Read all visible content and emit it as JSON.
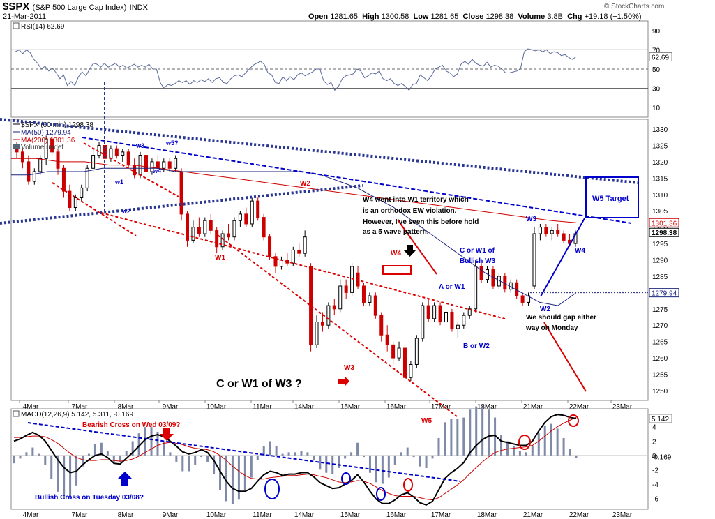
{
  "header": {
    "symbol": "$SPX",
    "name": "(S&P 500 Large Cap Index)",
    "exchange": "INDX",
    "date": "21-Mar-2011",
    "open_label": "Open",
    "open": "1281.65",
    "high_label": "High",
    "high": "1300.58",
    "low_label": "Low",
    "low": "1281.65",
    "close_label": "Close",
    "close": "1298.38",
    "volume_label": "Volume",
    "volume": "3.8B",
    "chg_label": "Chg",
    "chg": "+19.18 (+1.50%)",
    "watermark": "© StockCharts.com"
  },
  "colors": {
    "candle_up": "#000000",
    "candle_down": "#cc0000",
    "ma50": "#1a237e",
    "ma200": "#cc0000",
    "annotation_blue": "#0000cc",
    "annotation_red": "#dd0000",
    "rsi": "#5a6a9a",
    "macd": "#000000",
    "signal": "#cc0000",
    "histogram": "#7f8aa8"
  },
  "chart_data": [
    {
      "type": "line",
      "title": "RSI(14) 62.69",
      "y_ticks": [
        90,
        70,
        50,
        30,
        10
      ],
      "ylim": [
        0,
        100
      ],
      "last_value_label": "62.69",
      "values": [
        68,
        70,
        66,
        70,
        67,
        60,
        56,
        50,
        53,
        48,
        51,
        46,
        40,
        44,
        33,
        37,
        33,
        42,
        47,
        43,
        50,
        56,
        55,
        52,
        56,
        52,
        54,
        56,
        52,
        54,
        51,
        53,
        55,
        52,
        54,
        52,
        55,
        50,
        50,
        36,
        30,
        34,
        33,
        35,
        38,
        36,
        38,
        34,
        38,
        36,
        39,
        37,
        40,
        36,
        40,
        41,
        36,
        35,
        40,
        43,
        44,
        42,
        46,
        50,
        54,
        56,
        58,
        55,
        46,
        44,
        36,
        35,
        42,
        38,
        42,
        39,
        44,
        46,
        43,
        45,
        47,
        50,
        50,
        38,
        34,
        36,
        28,
        32,
        40,
        43,
        44,
        45,
        50,
        48,
        41,
        43,
        46,
        45,
        48,
        40,
        38,
        40,
        35,
        33,
        35,
        32,
        28,
        34,
        35,
        44,
        41,
        38,
        43,
        50,
        52,
        54,
        48,
        46,
        42,
        45,
        55,
        58,
        55,
        60,
        56,
        54,
        53,
        57,
        52,
        54,
        53,
        50,
        46,
        46,
        47,
        48,
        50,
        68,
        71,
        70,
        69,
        70,
        68,
        70,
        66,
        68,
        67,
        64,
        65,
        62,
        60,
        63
      ]
    },
    {
      "type": "candlestick",
      "title": "$SPX (60 min) 1298.38",
      "legend": [
        "$SPX (60 min) 1298.38",
        "MA(50) 1279.94",
        "MA(200) 1301.36",
        "Volume undef"
      ],
      "y_ticks": [
        1330,
        1325,
        1320,
        1315,
        1310,
        1305,
        1300,
        1295,
        1290,
        1285,
        1280,
        1275,
        1270,
        1265,
        1260,
        1255,
        1250
      ],
      "ylim": [
        1247,
        1333
      ],
      "x_labels": [
        "4Mar",
        "7Mar",
        "8Mar",
        "9Mar",
        "10Mar",
        "11Mar",
        "14Mar",
        "15Mar",
        "16Mar",
        "17Mar",
        "18Mar",
        "21Mar",
        "22Mar",
        "23Mar"
      ],
      "price_labels": {
        "ma200": "1301.36",
        "close": "1298.38",
        "ma50": "1279.94"
      },
      "candles": [
        {
          "o": 1324,
          "h": 1326,
          "l": 1321,
          "c": 1323
        },
        {
          "o": 1323,
          "h": 1324,
          "l": 1318,
          "c": 1320
        },
        {
          "o": 1320,
          "h": 1322,
          "l": 1313,
          "c": 1314
        },
        {
          "o": 1314,
          "h": 1318,
          "l": 1313,
          "c": 1317
        },
        {
          "o": 1317,
          "h": 1322,
          "l": 1316,
          "c": 1321
        },
        {
          "o": 1321,
          "h": 1328,
          "l": 1319,
          "c": 1327
        },
        {
          "o": 1327,
          "h": 1329,
          "l": 1322,
          "c": 1323
        },
        {
          "o": 1323,
          "h": 1324,
          "l": 1316,
          "c": 1318
        },
        {
          "o": 1318,
          "h": 1319,
          "l": 1309,
          "c": 1311
        },
        {
          "o": 1311,
          "h": 1313,
          "l": 1305,
          "c": 1306
        },
        {
          "o": 1306,
          "h": 1310,
          "l": 1305,
          "c": 1309
        },
        {
          "o": 1309,
          "h": 1313,
          "l": 1308,
          "c": 1312
        },
        {
          "o": 1312,
          "h": 1319,
          "l": 1311,
          "c": 1318
        },
        {
          "o": 1318,
          "h": 1324,
          "l": 1317,
          "c": 1322
        },
        {
          "o": 1322,
          "h": 1326,
          "l": 1321,
          "c": 1325
        },
        {
          "o": 1325,
          "h": 1326,
          "l": 1320,
          "c": 1321
        },
        {
          "o": 1321,
          "h": 1325,
          "l": 1320,
          "c": 1324
        },
        {
          "o": 1324,
          "h": 1325,
          "l": 1321,
          "c": 1322
        },
        {
          "o": 1322,
          "h": 1324,
          "l": 1320,
          "c": 1323
        },
        {
          "o": 1323,
          "h": 1324,
          "l": 1318,
          "c": 1319
        },
        {
          "o": 1319,
          "h": 1321,
          "l": 1315,
          "c": 1316
        },
        {
          "o": 1316,
          "h": 1323,
          "l": 1315,
          "c": 1322
        },
        {
          "o": 1322,
          "h": 1323,
          "l": 1316,
          "c": 1317
        },
        {
          "o": 1317,
          "h": 1321,
          "l": 1316,
          "c": 1320
        },
        {
          "o": 1320,
          "h": 1322,
          "l": 1317,
          "c": 1318
        },
        {
          "o": 1318,
          "h": 1321,
          "l": 1317,
          "c": 1320
        },
        {
          "o": 1320,
          "h": 1321,
          "l": 1317,
          "c": 1318
        },
        {
          "o": 1318,
          "h": 1322,
          "l": 1317,
          "c": 1321
        },
        {
          "o": 1317,
          "h": 1318,
          "l": 1302,
          "c": 1304
        },
        {
          "o": 1304,
          "h": 1305,
          "l": 1294,
          "c": 1296
        },
        {
          "o": 1296,
          "h": 1302,
          "l": 1295,
          "c": 1300
        },
        {
          "o": 1300,
          "h": 1303,
          "l": 1297,
          "c": 1298
        },
        {
          "o": 1298,
          "h": 1303,
          "l": 1297,
          "c": 1302
        },
        {
          "o": 1302,
          "h": 1304,
          "l": 1298,
          "c": 1299
        },
        {
          "o": 1299,
          "h": 1300,
          "l": 1292,
          "c": 1294
        },
        {
          "o": 1294,
          "h": 1299,
          "l": 1293,
          "c": 1298
        },
        {
          "o": 1298,
          "h": 1301,
          "l": 1296,
          "c": 1297
        },
        {
          "o": 1297,
          "h": 1303,
          "l": 1296,
          "c": 1302
        },
        {
          "o": 1302,
          "h": 1305,
          "l": 1300,
          "c": 1304
        },
        {
          "o": 1304,
          "h": 1306,
          "l": 1300,
          "c": 1301
        },
        {
          "o": 1301,
          "h": 1309,
          "l": 1300,
          "c": 1308
        },
        {
          "o": 1308,
          "h": 1309,
          "l": 1302,
          "c": 1303
        },
        {
          "o": 1303,
          "h": 1304,
          "l": 1296,
          "c": 1297
        },
        {
          "o": 1297,
          "h": 1298,
          "l": 1290,
          "c": 1291
        },
        {
          "o": 1291,
          "h": 1292,
          "l": 1286,
          "c": 1288
        },
        {
          "o": 1288,
          "h": 1291,
          "l": 1287,
          "c": 1290
        },
        {
          "o": 1290,
          "h": 1292,
          "l": 1288,
          "c": 1289
        },
        {
          "o": 1289,
          "h": 1294,
          "l": 1288,
          "c": 1293
        },
        {
          "o": 1293,
          "h": 1295,
          "l": 1291,
          "c": 1292
        },
        {
          "o": 1292,
          "h": 1299,
          "l": 1291,
          "c": 1297
        },
        {
          "o": 1288,
          "h": 1289,
          "l": 1262,
          "c": 1264
        },
        {
          "o": 1264,
          "h": 1273,
          "l": 1263,
          "c": 1271
        },
        {
          "o": 1271,
          "h": 1274,
          "l": 1268,
          "c": 1270
        },
        {
          "o": 1270,
          "h": 1277,
          "l": 1269,
          "c": 1276
        },
        {
          "o": 1276,
          "h": 1278,
          "l": 1273,
          "c": 1275
        },
        {
          "o": 1275,
          "h": 1284,
          "l": 1274,
          "c": 1282
        },
        {
          "o": 1282,
          "h": 1284,
          "l": 1278,
          "c": 1280
        },
        {
          "o": 1280,
          "h": 1289,
          "l": 1279,
          "c": 1288
        },
        {
          "o": 1286,
          "h": 1288,
          "l": 1281,
          "c": 1282
        },
        {
          "o": 1282,
          "h": 1283,
          "l": 1276,
          "c": 1277
        },
        {
          "o": 1277,
          "h": 1280,
          "l": 1276,
          "c": 1279
        },
        {
          "o": 1279,
          "h": 1280,
          "l": 1272,
          "c": 1273
        },
        {
          "o": 1273,
          "h": 1274,
          "l": 1265,
          "c": 1267
        },
        {
          "o": 1267,
          "h": 1270,
          "l": 1262,
          "c": 1264
        },
        {
          "o": 1264,
          "h": 1265,
          "l": 1258,
          "c": 1260
        },
        {
          "o": 1260,
          "h": 1265,
          "l": 1259,
          "c": 1263
        },
        {
          "o": 1263,
          "h": 1264,
          "l": 1252,
          "c": 1254
        },
        {
          "o": 1254,
          "h": 1259,
          "l": 1253,
          "c": 1258
        },
        {
          "o": 1258,
          "h": 1267,
          "l": 1257,
          "c": 1266
        },
        {
          "o": 1266,
          "h": 1277,
          "l": 1265,
          "c": 1276
        },
        {
          "o": 1276,
          "h": 1278,
          "l": 1271,
          "c": 1272
        },
        {
          "o": 1272,
          "h": 1277,
          "l": 1271,
          "c": 1276
        },
        {
          "o": 1276,
          "h": 1277,
          "l": 1270,
          "c": 1271
        },
        {
          "o": 1271,
          "h": 1275,
          "l": 1270,
          "c": 1274
        },
        {
          "o": 1274,
          "h": 1275,
          "l": 1268,
          "c": 1269
        },
        {
          "o": 1269,
          "h": 1271,
          "l": 1266,
          "c": 1270
        },
        {
          "o": 1270,
          "h": 1274,
          "l": 1269,
          "c": 1273
        },
        {
          "o": 1273,
          "h": 1276,
          "l": 1272,
          "c": 1275
        },
        {
          "o": 1275,
          "h": 1290,
          "l": 1274,
          "c": 1288
        },
        {
          "o": 1288,
          "h": 1289,
          "l": 1283,
          "c": 1284
        },
        {
          "o": 1284,
          "h": 1288,
          "l": 1283,
          "c": 1287
        },
        {
          "o": 1287,
          "h": 1288,
          "l": 1281,
          "c": 1282
        },
        {
          "o": 1282,
          "h": 1286,
          "l": 1281,
          "c": 1285
        },
        {
          "o": 1285,
          "h": 1286,
          "l": 1280,
          "c": 1281
        },
        {
          "o": 1281,
          "h": 1284,
          "l": 1280,
          "c": 1283
        },
        {
          "o": 1283,
          "h": 1284,
          "l": 1278,
          "c": 1279
        },
        {
          "o": 1279,
          "h": 1280,
          "l": 1276,
          "c": 1277
        },
        {
          "o": 1277,
          "h": 1280,
          "l": 1276,
          "c": 1279
        },
        {
          "o": 1282,
          "h": 1300,
          "l": 1281,
          "c": 1298
        },
        {
          "o": 1298,
          "h": 1301,
          "l": 1296,
          "c": 1300
        },
        {
          "o": 1300,
          "h": 1301,
          "l": 1297,
          "c": 1298
        },
        {
          "o": 1298,
          "h": 1300,
          "l": 1296,
          "c": 1299
        },
        {
          "o": 1299,
          "h": 1301,
          "l": 1297,
          "c": 1298
        },
        {
          "o": 1298,
          "h": 1299,
          "l": 1295,
          "c": 1296
        },
        {
          "o": 1296,
          "h": 1298,
          "l": 1294,
          "c": 1295
        },
        {
          "o": 1295,
          "h": 1299,
          "l": 1294,
          "c": 1298
        }
      ],
      "ma50": [
        1316,
        1316,
        1317,
        1317,
        1317,
        1318,
        1318,
        1318,
        1318,
        1317,
        1317,
        1317,
        1317,
        1317,
        1317,
        1317,
        1317,
        1316,
        1314,
        1312,
        1309,
        1306,
        1302,
        1298,
        1294,
        1290,
        1286,
        1283,
        1280,
        1277,
        1276,
        1279.94
      ],
      "ma200": [
        1321,
        1321,
        1320,
        1320,
        1319,
        1319,
        1318,
        1317,
        1316,
        1315,
        1314,
        1313,
        1312,
        1311,
        1310,
        1309,
        1308,
        1307,
        1306,
        1305,
        1304,
        1303,
        1302,
        1301.36
      ],
      "annotations": [
        {
          "text": "w1",
          "color": "blue"
        },
        {
          "text": "w2",
          "color": "blue"
        },
        {
          "text": "w3",
          "color": "blue"
        },
        {
          "text": "w4",
          "color": "blue"
        },
        {
          "text": "w5?",
          "color": "blue"
        },
        {
          "text": "W1",
          "color": "red"
        },
        {
          "text": "W2",
          "color": "red"
        },
        {
          "text": "W3",
          "color": "red"
        },
        {
          "text": "W4",
          "color": "red"
        },
        {
          "text": "W5",
          "color": "red"
        },
        {
          "text": "W4 went into W1 territory which",
          "color": "black"
        },
        {
          "text": "is an orthodox EW violation.",
          "color": "black"
        },
        {
          "text": "However, I've seen this before hold",
          "color": "black"
        },
        {
          "text": "as a 5 wave pattern.",
          "color": "black"
        },
        {
          "text": "C or W1 of",
          "color": "blue"
        },
        {
          "text": "Bullish W3",
          "color": "blue"
        },
        {
          "text": "A or W1",
          "color": "blue"
        },
        {
          "text": "B or W2",
          "color": "blue"
        },
        {
          "text": "W3",
          "color": "blue"
        },
        {
          "text": "W4",
          "color": "blue"
        },
        {
          "text": "W2",
          "color": "blue"
        },
        {
          "text": "W5 Target",
          "color": "blue"
        },
        {
          "text": "We should gap either",
          "color": "black"
        },
        {
          "text": "way on Monday",
          "color": "black"
        },
        {
          "text": "C or W1 of W3 ?",
          "color": "black"
        }
      ]
    },
    {
      "type": "line",
      "title": "MACD(12,26,9) 5.142, 5.311, -0.169",
      "y_ticks": [
        4,
        2,
        0,
        -2,
        -4,
        -6
      ],
      "ylim": [
        -7.5,
        6.5
      ],
      "last_value_labels": [
        "5.142",
        "-0.169"
      ],
      "macd": [
        2,
        2.3,
        2.8,
        3.2,
        2.8,
        2.0,
        0.7,
        -0.6,
        -1.7,
        -2.4,
        -2.2,
        -1.3,
        -0.6,
        0.0,
        0.2,
        -0.3,
        -1.1,
        -1.2,
        -0.4,
        0.4,
        1.3,
        2.2,
        2.7,
        2.9,
        2.6,
        2.0,
        1.3,
        0.5,
        0.2,
        0.4,
        0.8,
        0.4,
        -0.7,
        -2.2,
        -3.6,
        -4.6,
        -5.0,
        -5.0,
        -4.6,
        -3.6,
        -2.7,
        -2.2,
        -2.4,
        -2.8,
        -2.6,
        -2.6,
        -2.4,
        -2.4,
        -3.0,
        -3.8,
        -4.2,
        -4.6,
        -4.5,
        -4.0,
        -3.5,
        -2.7,
        -3.7,
        -5.0,
        -6.1,
        -6.7,
        -6.7,
        -6.2,
        -5.5,
        -5.2,
        -5.8,
        -6.6,
        -6.9,
        -6.4,
        -4.8,
        -3.2,
        -2.4,
        -1.8,
        -1.0,
        0.4,
        1.4,
        2.2,
        2.7,
        2.8,
        2.0,
        1.8,
        1.6,
        1.4,
        1.4,
        2.0,
        3.4,
        4.6,
        5.4,
        5.7,
        5.6,
        5.3,
        5.14
      ],
      "signal": [
        2.5,
        2.5,
        2.6,
        2.7,
        2.7,
        2.6,
        2.2,
        1.7,
        1.0,
        0.3,
        -0.3,
        -0.6,
        -0.7,
        -0.7,
        -0.6,
        -0.6,
        -0.7,
        -0.8,
        -0.7,
        -0.5,
        -0.1,
        0.4,
        0.9,
        1.4,
        1.7,
        1.8,
        1.7,
        1.5,
        1.2,
        1.0,
        0.9,
        0.8,
        0.5,
        0.0,
        -0.7,
        -1.5,
        -2.2,
        -2.8,
        -3.2,
        -3.3,
        -3.3,
        -3.1,
        -3.0,
        -2.9,
        -2.8,
        -2.8,
        -2.7,
        -2.6,
        -2.7,
        -2.9,
        -3.1,
        -3.4,
        -3.7,
        -3.8,
        -3.7,
        -3.5,
        -3.6,
        -3.9,
        -4.4,
        -4.9,
        -5.3,
        -5.6,
        -5.7,
        -5.7,
        -5.7,
        -5.9,
        -6.1,
        -6.2,
        -5.9,
        -5.3,
        -4.7,
        -4.1,
        -3.4,
        -2.5,
        -1.7,
        -0.9,
        -0.2,
        0.4,
        0.7,
        0.9,
        1.0,
        1.1,
        1.2,
        1.4,
        2.0,
        2.7,
        3.4,
        4.0,
        4.5,
        4.9,
        5.311
      ],
      "annotations": [
        {
          "text": "Bearish Cross on Wed 03/09?",
          "color": "red"
        },
        {
          "text": "Bullish Cross on Tuesday 03/08?",
          "color": "blue"
        }
      ]
    }
  ]
}
